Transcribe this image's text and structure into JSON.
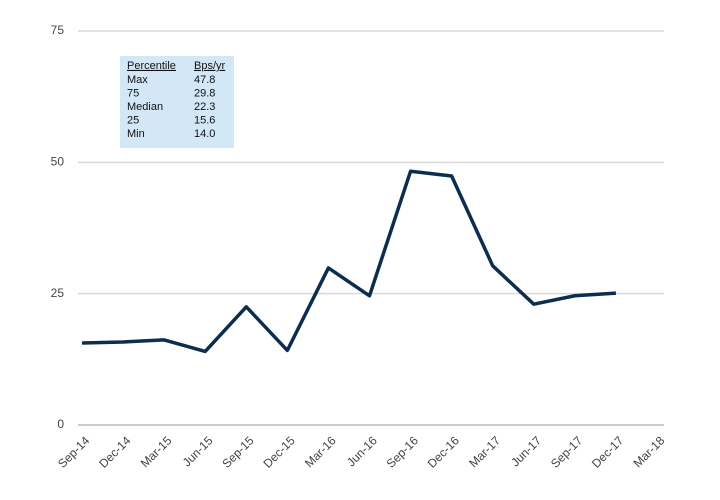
{
  "chart_data": {
    "type": "line",
    "categories": [
      "Sep-14",
      "Dec-14",
      "Mar-15",
      "Jun-15",
      "Sep-15",
      "Dec-15",
      "Mar-16",
      "Jun-16",
      "Sep-16",
      "Dec-16",
      "Mar-17",
      "Jun-17",
      "Sep-17",
      "Dec-17",
      "Mar-18"
    ],
    "values": [
      15.6,
      15.8,
      16.2,
      14.0,
      22.5,
      14.2,
      29.9,
      24.6,
      48.3,
      47.4,
      30.3,
      23.0,
      24.6,
      25.1,
      null
    ],
    "color": "#0d2d4f",
    "ylim": [
      0,
      75
    ],
    "yticks": [
      0,
      25,
      50,
      75
    ],
    "grid": true,
    "table": {
      "header": [
        "Percentile",
        "Bps/yr"
      ],
      "rows": [
        [
          "Max",
          "47.8"
        ],
        [
          "75",
          "29.8"
        ],
        [
          "Median",
          "22.3"
        ],
        [
          "25",
          "15.6"
        ],
        [
          "Min",
          "14.0"
        ]
      ]
    }
  }
}
